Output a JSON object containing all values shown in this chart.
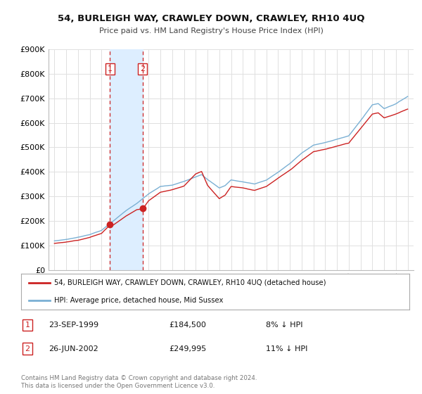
{
  "title": "54, BURLEIGH WAY, CRAWLEY DOWN, CRAWLEY, RH10 4UQ",
  "subtitle": "Price paid vs. HM Land Registry's House Price Index (HPI)",
  "legend_line1": "54, BURLEIGH WAY, CRAWLEY DOWN, CRAWLEY, RH10 4UQ (detached house)",
  "legend_line2": "HPI: Average price, detached house, Mid Sussex",
  "sale1_date": "23-SEP-1999",
  "sale1_price": "£184,500",
  "sale1_hpi": "8% ↓ HPI",
  "sale2_date": "26-JUN-2002",
  "sale2_price": "£249,995",
  "sale2_hpi": "11% ↓ HPI",
  "footnote1": "Contains HM Land Registry data © Crown copyright and database right 2024.",
  "footnote2": "This data is licensed under the Open Government Licence v3.0.",
  "sale1_year": 1999.72,
  "sale1_value": 184500,
  "sale2_year": 2002.48,
  "sale2_value": 249995,
  "hpi_color": "#7ab0d4",
  "price_color": "#cc2222",
  "vline_color": "#cc2222",
  "shade_color": "#ddeeff",
  "ylim": [
    0,
    900000
  ],
  "yticks": [
    0,
    100000,
    200000,
    300000,
    400000,
    500000,
    600000,
    700000,
    800000,
    900000
  ],
  "ytick_labels": [
    "£0",
    "£100K",
    "£200K",
    "£300K",
    "£400K",
    "£500K",
    "£600K",
    "£700K",
    "£800K",
    "£900K"
  ],
  "xlim": [
    1994.5,
    2025.5
  ],
  "xticks": [
    1995,
    1996,
    1997,
    1998,
    1999,
    2000,
    2001,
    2002,
    2003,
    2004,
    2005,
    2006,
    2007,
    2008,
    2009,
    2010,
    2011,
    2012,
    2013,
    2014,
    2015,
    2016,
    2017,
    2018,
    2019,
    2020,
    2021,
    2022,
    2023,
    2024,
    2025
  ],
  "background_color": "#ffffff",
  "grid_color": "#e0e0e0",
  "hpi_anchors_years": [
    1995,
    1996,
    1997,
    1998,
    1999,
    2000,
    2001,
    2002,
    2003,
    2004,
    2005,
    2006,
    2007,
    2007.5,
    2008,
    2009,
    2009.5,
    2010,
    2011,
    2012,
    2013,
    2014,
    2015,
    2016,
    2017,
    2018,
    2019,
    2020,
    2021,
    2022,
    2022.5,
    2023,
    2024,
    2025
  ],
  "hpi_anchors_vals": [
    118000,
    124000,
    133000,
    145000,
    162000,
    200000,
    240000,
    272000,
    310000,
    340000,
    345000,
    360000,
    380000,
    390000,
    370000,
    335000,
    345000,
    368000,
    360000,
    352000,
    368000,
    400000,
    435000,
    478000,
    510000,
    520000,
    535000,
    548000,
    610000,
    675000,
    680000,
    660000,
    680000,
    710000
  ],
  "price_anchors_years": [
    1995,
    1996,
    1997,
    1998,
    1999,
    1999.72,
    2000,
    2001,
    2002,
    2002.48,
    2003,
    2004,
    2005,
    2006,
    2007,
    2007.5,
    2008,
    2009,
    2009.5,
    2010,
    2011,
    2012,
    2013,
    2014,
    2015,
    2016,
    2017,
    2018,
    2019,
    2020,
    2021,
    2022,
    2022.5,
    2023,
    2024,
    2025
  ],
  "price_anchors_vals": [
    108000,
    114000,
    122000,
    134000,
    150000,
    184500,
    185000,
    220000,
    248000,
    249995,
    285000,
    320000,
    330000,
    345000,
    395000,
    405000,
    350000,
    295000,
    310000,
    345000,
    340000,
    330000,
    345000,
    378000,
    410000,
    450000,
    485000,
    495000,
    508000,
    520000,
    580000,
    640000,
    645000,
    625000,
    640000,
    660000
  ]
}
